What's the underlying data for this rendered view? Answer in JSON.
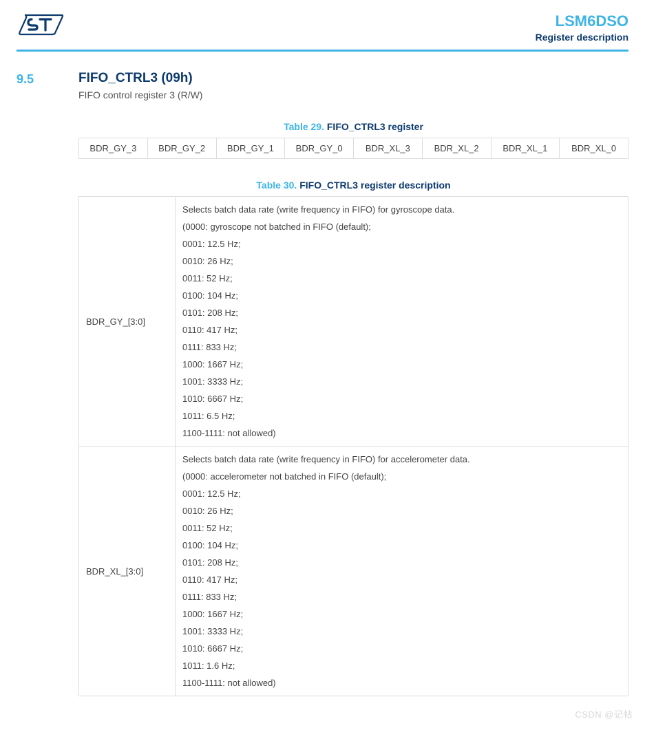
{
  "colors": {
    "accent": "#3db5e6",
    "heading": "#0c3a6e",
    "border": "#dcdcdc",
    "text": "#444444",
    "watermark": "#d8d8d8"
  },
  "header": {
    "product": "LSM6DSO",
    "subtitle": "Register description"
  },
  "section": {
    "number": "9.5",
    "title": "FIFO_CTRL3 (09h)",
    "description": "FIFO control register 3 (R/W)"
  },
  "table29": {
    "caption_num": "Table 29.",
    "caption_title": "FIFO_CTRL3 register",
    "cells": [
      "BDR_GY_3",
      "BDR_GY_2",
      "BDR_GY_1",
      "BDR_GY_0",
      "BDR_XL_3",
      "BDR_XL_2",
      "BDR_XL_1",
      "BDR_XL_0"
    ]
  },
  "table30": {
    "caption_num": "Table 30.",
    "caption_title": "FIFO_CTRL3 register description",
    "rows": [
      {
        "field": "BDR_GY_[3:0]",
        "lines": [
          "Selects batch data rate (write frequency in FIFO) for gyroscope data.",
          "(0000: gyroscope not batched in FIFO (default);",
          "0001: 12.5 Hz;",
          "0010: 26 Hz;",
          "0011: 52 Hz;",
          "0100: 104 Hz;",
          "0101: 208 Hz;",
          "0110: 417 Hz;",
          "0111: 833 Hz;",
          "1000: 1667 Hz;",
          "1001: 3333 Hz;",
          "1010: 6667 Hz;",
          "1011: 6.5 Hz;",
          "1100-1111: not allowed)"
        ]
      },
      {
        "field": "BDR_XL_[3:0]",
        "lines": [
          "Selects batch data rate (write frequency in FIFO) for accelerometer data.",
          "(0000: accelerometer not batched in FIFO (default);",
          "0001: 12.5 Hz;",
          "0010: 26 Hz;",
          "0011: 52 Hz;",
          "0100: 104 Hz;",
          "0101: 208 Hz;",
          "0110: 417 Hz;",
          "0111: 833 Hz;",
          "1000: 1667 Hz;",
          "1001: 3333 Hz;",
          "1010: 6667 Hz;",
          "1011: 1.6 Hz;",
          "1100-1111: not allowed)"
        ]
      }
    ]
  },
  "watermark": "CSDN @记帖"
}
